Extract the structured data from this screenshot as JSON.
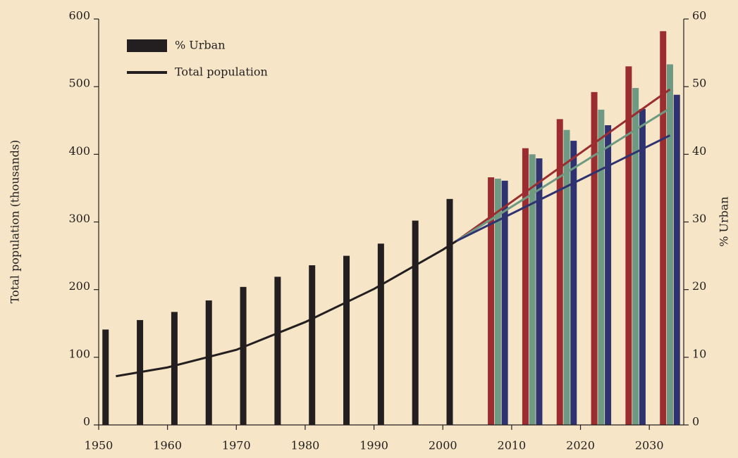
{
  "chart_data": {
    "type": "bar",
    "y_label": "Total population (thousands)",
    "y2_label": "% Urban",
    "xlim": [
      1950,
      2035
    ],
    "xticks": [
      1950,
      1960,
      1970,
      1980,
      1990,
      2000,
      2010,
      2020,
      2030
    ],
    "ylim": [
      0,
      600
    ],
    "yticks": [
      0,
      100,
      200,
      300,
      400,
      500,
      600
    ],
    "y2lim": [
      0,
      60
    ],
    "y2ticks": [
      0,
      10,
      20,
      30,
      40,
      50,
      60
    ],
    "series": [
      {
        "name": "% Urban",
        "type": "bar",
        "axis": "y2",
        "color": "#231f20",
        "x": [
          1951,
          1956,
          1961,
          1966,
          1971,
          1976,
          1981,
          1986,
          1991,
          1996,
          2001
        ],
        "values": [
          14.1,
          15.5,
          16.7,
          18.4,
          20.4,
          21.9,
          23.6,
          25.0,
          26.8,
          30.2,
          33.4
        ]
      },
      {
        "name": "Total population",
        "type": "line",
        "color": "#231f20",
        "x": [
          1952.5,
          1960,
          1970,
          1980,
          1990,
          2000,
          2002
        ],
        "values": [
          72,
          85,
          111,
          152,
          201,
          259,
          272
        ]
      },
      {
        "type": "bar",
        "axis": "y2",
        "color": "#9b2d30",
        "x": [
          2007,
          2012,
          2017,
          2022,
          2027,
          2032
        ],
        "values": [
          36.6,
          40.9,
          45.2,
          49.2,
          53.0,
          58.2
        ]
      },
      {
        "type": "bar",
        "axis": "y2",
        "color": "#6e9a83",
        "x": [
          2008,
          2013,
          2018,
          2023,
          2028,
          2033
        ],
        "values": [
          36.4,
          40.0,
          43.6,
          46.6,
          49.8,
          53.3
        ]
      },
      {
        "type": "bar",
        "axis": "y2",
        "color": "#2e3270",
        "x": [
          2009,
          2014,
          2019,
          2024,
          2029,
          2034
        ],
        "values": [
          36.1,
          39.4,
          42.0,
          44.3,
          46.7,
          48.8
        ]
      },
      {
        "type": "line",
        "color": "#9b2d30",
        "x": [
          2002,
          2033
        ],
        "values": [
          272,
          496
        ]
      },
      {
        "type": "line",
        "color": "#6e9a83",
        "x": [
          2002,
          2033
        ],
        "values": [
          272,
          468
        ]
      },
      {
        "type": "line",
        "color": "#2e3270",
        "x": [
          2002,
          2033
        ],
        "values": [
          272,
          428
        ]
      }
    ]
  }
}
